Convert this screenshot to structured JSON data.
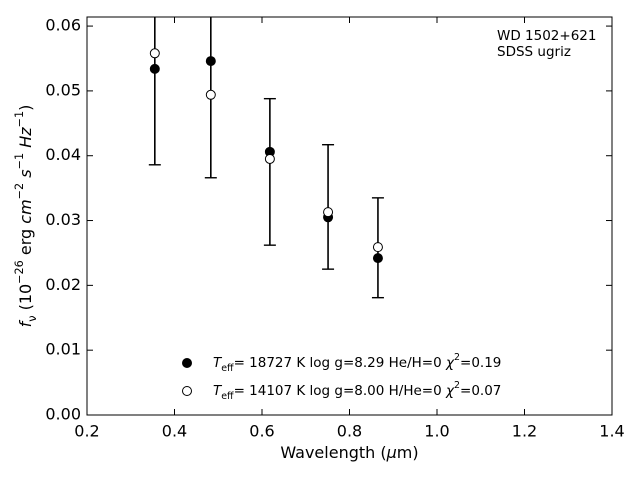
{
  "chart_data": {
    "type": "scatter",
    "annotations": [
      "WD 1502+621",
      "SDSS ugriz"
    ],
    "xlabel": [
      {
        "text": "Wavelength ("
      },
      {
        "text": "μ",
        "style": "italic"
      },
      {
        "text": "m"
      },
      {
        "text": ")"
      }
    ],
    "ylabel": [
      {
        "text": "f",
        "style": "italic"
      },
      {
        "text": "ν",
        "style": "sub"
      },
      {
        "text": " (10"
      },
      {
        "text": "−26",
        "style": "sup"
      },
      {
        "text": " erg "
      },
      {
        "text": "cm",
        "style": "italic"
      },
      {
        "text": "−2",
        "style": "sup"
      },
      {
        "text": " "
      },
      {
        "text": "s",
        "style": "italic"
      },
      {
        "text": "−1",
        "style": "sup"
      },
      {
        "text": " "
      },
      {
        "text": "Hz",
        "style": "italic"
      },
      {
        "text": "−1",
        "style": "sup"
      },
      {
        "text": ")"
      }
    ],
    "x": [
      0.355,
      0.483,
      0.618,
      0.751,
      0.865
    ],
    "series": [
      {
        "name": [
          {
            "text": "T",
            "style": "italic"
          },
          {
            "text": "eff",
            "style": "sub"
          },
          {
            "text": "= 18727 K  log g=8.29  He/H=0  "
          },
          {
            "text": "χ",
            "style": "italic"
          },
          {
            "text": "2",
            "style": "sup"
          },
          {
            "text": "=0.19"
          }
        ],
        "color": "#000000",
        "fill": "filled",
        "values": [
          0.0534,
          0.0546,
          0.0406,
          0.0305,
          0.0242
        ]
      },
      {
        "name": [
          {
            "text": "T",
            "style": "italic"
          },
          {
            "text": "eff",
            "style": "sub"
          },
          {
            "text": "= 14107 K  log g=8.00  H/He=0  "
          },
          {
            "text": "χ",
            "style": "italic"
          },
          {
            "text": "2",
            "style": "sup"
          },
          {
            "text": "=0.07"
          }
        ],
        "color": "#000000",
        "fill": "open",
        "values": [
          0.0558,
          0.0494,
          0.0395,
          0.0313,
          0.0259
        ]
      }
    ],
    "errorbars": {
      "color": "#000000",
      "values": [
        0.054,
        0.052,
        0.0375,
        0.0321,
        0.0258
      ],
      "errors": [
        0.0154,
        0.0154,
        0.0113,
        0.0096,
        0.0077
      ]
    },
    "xlim": [
      0.2,
      1.4
    ],
    "xticks": [
      0.2,
      0.4,
      0.6,
      0.8,
      {
        "value": 1.0,
        "label": "1.0"
      },
      1.2,
      1.4
    ],
    "ylim": [
      0,
      0.0614
    ],
    "yticks": [
      {
        "value": 0,
        "label": "0.00"
      },
      0.01,
      0.02,
      0.03,
      0.04,
      0.05,
      0.06
    ],
    "tick_direction": "in",
    "legend": "lower center"
  }
}
